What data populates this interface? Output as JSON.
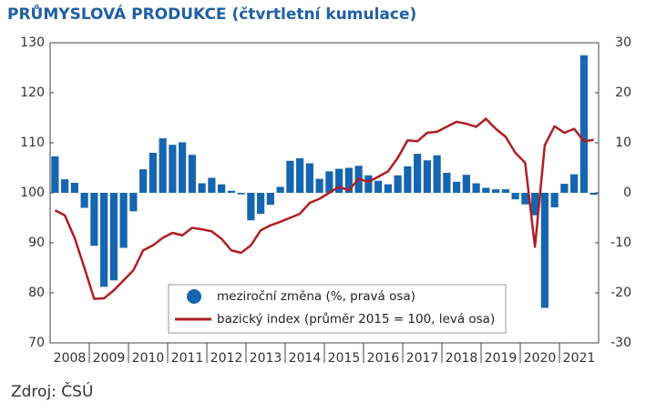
{
  "chart_data": {
    "type": "bar_line",
    "title": "PRŮMYSLOVÁ PRODUKCE (čtvrtletní kumulace)",
    "source": "Zdroj: ČSÚ",
    "years": [
      "2008",
      "2009",
      "2010",
      "2011",
      "2012",
      "2013",
      "2014",
      "2015",
      "2016",
      "2017",
      "2018",
      "2019",
      "2020",
      "2021"
    ],
    "series": [
      {
        "name": "meziroční změna (%, pravá osa)",
        "color": "#1565b0",
        "axis": "y2",
        "kind": "bar",
        "values": [
          7.3,
          2.7,
          2,
          -3,
          -10.6,
          -18.8,
          -17.5,
          -11,
          -3.7,
          4.7,
          8,
          10.9,
          9.6,
          10.1,
          7.6,
          1.9,
          3,
          1.7,
          0.4,
          -0.3,
          -5.5,
          -4.2,
          -2.4,
          1.2,
          6.4,
          6.9,
          5.9,
          2.8,
          4.3,
          4.8,
          5,
          5.4,
          3.5,
          2.4,
          1.7,
          3.5,
          5.3,
          7.8,
          6.5,
          7.5,
          4,
          2.2,
          3.6,
          1.9,
          1,
          0.7,
          0.7,
          -1.3,
          -2.3,
          -4.5,
          -23,
          -2.9,
          1.8,
          3.7,
          27.5,
          -0.4
        ]
      },
      {
        "name": "bazický index (průměr 2015 = 100, levá osa)",
        "color": "#b01e23",
        "kind": "line",
        "values": [
          96.5,
          95.5,
          91,
          85,
          78.8,
          78.9,
          80.5,
          82.5,
          84.5,
          88.5,
          89.5,
          91,
          92,
          91.5,
          93,
          92.7,
          92.3,
          90.8,
          88.5,
          88,
          89.5,
          92.5,
          93.5,
          94.2,
          95,
          95.8,
          98,
          98.8,
          100,
          101.2,
          100.5,
          102.8,
          102.2,
          103.2,
          104.3,
          107,
          110.5,
          110.3,
          112,
          112.2,
          113.2,
          114.2,
          113.8,
          113.2,
          114.8,
          112.8,
          111.2,
          108,
          106,
          89.2,
          109.5,
          113.3,
          112,
          112.8,
          110.3,
          110.6
        ]
      }
    ],
    "ylim": [
      70,
      130
    ],
    "yticks": [
      70,
      80,
      90,
      100,
      110,
      120,
      130
    ],
    "y2lim": [
      -30,
      30
    ],
    "y2ticks": [
      -30,
      -20,
      -10,
      0,
      10,
      20,
      30
    ]
  }
}
